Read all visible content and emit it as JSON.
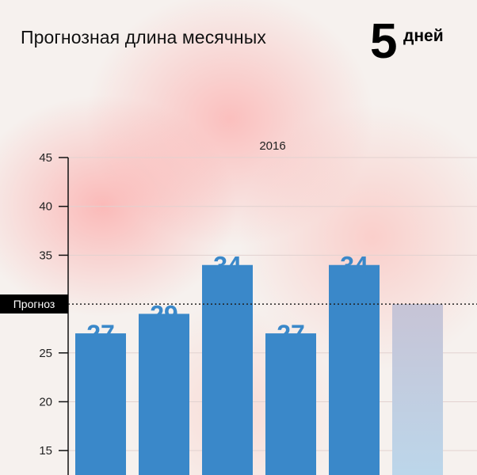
{
  "header": {
    "title": "Прогнозная длина месячных",
    "value": "5",
    "unit": "дней"
  },
  "forecast_label": "Прогноз",
  "colors": {
    "bar": "#3a88c9",
    "forecast_bar_top": "#c7c4d6",
    "forecast_bar_bottom": "#bcd6ea",
    "label": "#3a88c9",
    "grid": "#e2d2d0",
    "axis": "#111111"
  },
  "chart_data": {
    "type": "bar",
    "title": "2016",
    "categories": [
      "",
      "",
      "",
      "",
      "",
      ""
    ],
    "values": [
      27,
      29,
      34,
      27,
      34,
      30
    ],
    "labels": [
      "27",
      "29",
      "34",
      "27",
      "34",
      ""
    ],
    "forecast_index": 5,
    "forecast_line": 30,
    "yticks": [
      15,
      20,
      25,
      30,
      35,
      40,
      45
    ],
    "ytick_labels": [
      "15",
      "20",
      "25",
      "",
      "35",
      "40",
      "45"
    ],
    "ylim": [
      12.5,
      45
    ],
    "grid": true,
    "xlabel": "",
    "ylabel": ""
  }
}
